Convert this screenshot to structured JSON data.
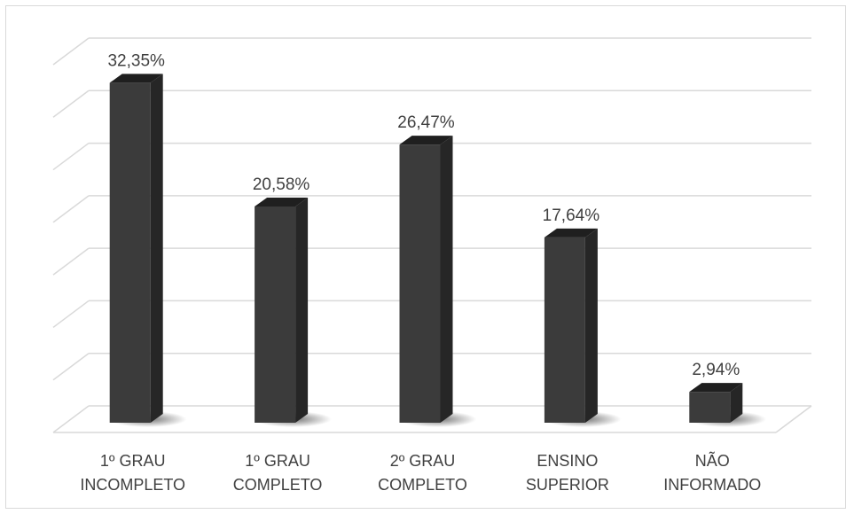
{
  "chart_data": {
    "type": "bar",
    "categories": [
      [
        "1º GRAU",
        "INCOMPLETO"
      ],
      [
        "1º GRAU",
        "COMPLETO"
      ],
      [
        "2º GRAU",
        "COMPLETO"
      ],
      [
        "ENSINO",
        "SUPERIOR"
      ],
      [
        "NÃO",
        "INFORMADO"
      ]
    ],
    "values": [
      32.35,
      20.58,
      26.47,
      17.64,
      2.94
    ],
    "data_labels": [
      "32,35%",
      "20,58%",
      "26,47%",
      "17,64%",
      "2,94%"
    ],
    "ylim": [
      0,
      35
    ],
    "grid": true,
    "legend": false,
    "colors": {
      "bar_front": "#3b3b3b",
      "bar_side": "#262626",
      "bar_top": "#1f1f1f",
      "gridline": "#d9d9d9",
      "text": "#404040"
    }
  }
}
